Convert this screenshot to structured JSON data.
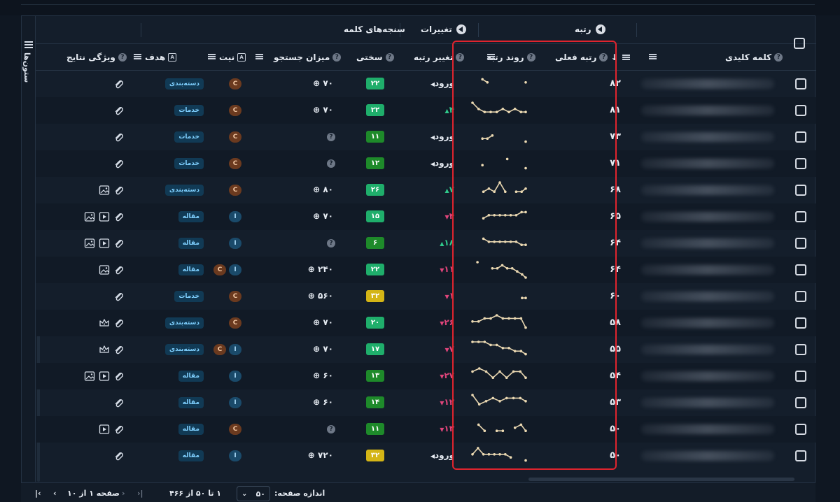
{
  "columns_rail_label": "ستون‌ها",
  "groups": {
    "rank": "رتبه",
    "changes": "تغییرات",
    "metrics": "سنجه‌های کلمه"
  },
  "headers": {
    "keyword": "کلمه کلیدی",
    "current_rank": "رتبه فعلی",
    "rank_trend": "روند رتبه",
    "rank_change": "تغییر رتبه",
    "difficulty": "سختی",
    "search_volume": "میزان جستجو",
    "intent": "نیت",
    "target": "هدف",
    "serp_features": "ویژگی نتایج"
  },
  "rows": [
    {
      "rank": "۸۲",
      "trend": [
        null,
        null,
        2,
        3,
        null,
        null,
        null,
        null,
        null,
        null,
        null,
        3
      ],
      "change": "ورود",
      "dir": "entry",
      "diff": "۲۲",
      "diffColor": "#1fae6b",
      "vol": "۷۰",
      "volQ": false,
      "intent": [
        "C"
      ],
      "target": "دسته‌بندی",
      "feat": [
        "clip"
      ]
    },
    {
      "rank": "۸۱",
      "trend": [
        1,
        3,
        4,
        4,
        4,
        3,
        4,
        3,
        4,
        4
      ],
      "change": "۴",
      "dir": "up",
      "diff": "۲۲",
      "diffColor": "#1fae6b",
      "vol": "۷۰",
      "volQ": false,
      "intent": [
        "C"
      ],
      "target": "خدمات",
      "feat": [
        "clip"
      ]
    },
    {
      "rank": "۷۳",
      "trend": [
        null,
        null,
        4,
        4,
        3,
        null,
        null,
        null,
        null,
        null,
        null,
        5
      ],
      "change": "ورود",
      "dir": "entry",
      "diff": "۱۱",
      "diffColor": "#1e8a2a",
      "vol": "",
      "volQ": true,
      "intent": [
        "C"
      ],
      "target": "خدمات",
      "feat": [
        "clip"
      ]
    },
    {
      "rank": "۷۱",
      "trend": [
        null,
        null,
        4,
        null,
        null,
        null,
        null,
        2,
        null,
        null,
        null,
        5
      ],
      "change": "ورود",
      "dir": "entry",
      "diff": "۱۲",
      "diffColor": "#1e8a2a",
      "vol": "",
      "volQ": true,
      "intent": [
        "C"
      ],
      "target": "خدمات",
      "feat": [
        "clip"
      ]
    },
    {
      "rank": "۶۸",
      "trend": [
        null,
        null,
        4,
        3,
        4,
        1,
        4,
        null,
        4,
        4,
        3
      ],
      "change": "۷",
      "dir": "up",
      "diff": "۲۶",
      "diffColor": "#1fae6b",
      "vol": "۸۰",
      "volQ": false,
      "intent": [
        "C"
      ],
      "target": "دسته‌بندی",
      "feat": [
        "clip",
        "image"
      ]
    },
    {
      "rank": "۶۵",
      "trend": [
        null,
        null,
        4,
        3,
        3,
        3,
        3,
        3,
        3,
        2,
        2
      ],
      "change": "۴",
      "dir": "down",
      "diff": "۱۵",
      "diffColor": "#1fae6b",
      "vol": "۷۰",
      "volQ": false,
      "intent": [
        "I"
      ],
      "target": "مقاله",
      "feat": [
        "clip",
        "video",
        "image"
      ]
    },
    {
      "rank": "۶۴",
      "trend": [
        null,
        null,
        2,
        3,
        3,
        3,
        3,
        3,
        3,
        4,
        4
      ],
      "change": "۱۸",
      "dir": "up",
      "diff": "۶",
      "diffColor": "#1e8a2a",
      "vol": "",
      "volQ": true,
      "intent": [
        "I"
      ],
      "target": "مقاله",
      "feat": [
        "clip",
        "video",
        "image"
      ]
    },
    {
      "rank": "۶۴",
      "trend": [
        null,
        1,
        null,
        null,
        3,
        3,
        2,
        3,
        3,
        4,
        5,
        6
      ],
      "change": "۱۱",
      "dir": "down",
      "diff": "۲۲",
      "diffColor": "#1fae6b",
      "vol": "۲۴۰",
      "volQ": false,
      "intent": [
        "C",
        "I"
      ],
      "target": "مقاله",
      "feat": [
        "clip",
        "image"
      ]
    },
    {
      "rank": "۶۰",
      "trend": [
        null,
        null,
        null,
        null,
        null,
        null,
        null,
        null,
        null,
        null,
        4,
        4
      ],
      "change": "۱",
      "dir": "down",
      "diff": "۳۲",
      "diffColor": "#d4b516",
      "vol": "۵۶۰",
      "volQ": false,
      "intent": [
        "C"
      ],
      "target": "خدمات",
      "feat": [
        "clip"
      ]
    },
    {
      "rank": "۵۸",
      "trend": [
        3,
        3,
        2,
        2,
        1,
        2,
        2,
        2,
        2,
        5
      ],
      "change": "۲۶",
      "dir": "down",
      "diff": "۲۰",
      "diffColor": "#1fae6b",
      "vol": "۷۰",
      "volQ": false,
      "intent": [
        "C"
      ],
      "target": "دسته‌بندی",
      "feat": [
        "clip",
        "crown"
      ]
    },
    {
      "rank": "۵۵",
      "trend": [
        1,
        1,
        1,
        2,
        2,
        3,
        3,
        4,
        4,
        5
      ],
      "change": "۷",
      "dir": "down",
      "diff": "۱۷",
      "diffColor": "#1fae6b",
      "vol": "۷۰",
      "volQ": false,
      "intent": [
        "C",
        "I"
      ],
      "target": "دسته‌بندی",
      "feat": [
        "clip",
        "crown"
      ]
    },
    {
      "rank": "۵۴",
      "trend": [
        2,
        1,
        2,
        4,
        2,
        4,
        2,
        2,
        4
      ],
      "change": "۲۷",
      "dir": "down",
      "diff": "۱۳",
      "diffColor": "#1e8a2a",
      "vol": "۶۰",
      "volQ": false,
      "intent": [
        "I"
      ],
      "target": "مقاله",
      "feat": [
        "clip",
        "video",
        "image"
      ]
    },
    {
      "rank": "۵۳",
      "trend": [
        1,
        4,
        3,
        2,
        3,
        2,
        2,
        2,
        3
      ],
      "change": "۱۲",
      "dir": "down",
      "diff": "۱۴",
      "diffColor": "#1e8a2a",
      "vol": "۶۰",
      "volQ": false,
      "intent": [
        "I"
      ],
      "target": "مقاله",
      "feat": [
        "clip"
      ]
    },
    {
      "rank": "۵۰",
      "trend": [
        null,
        2,
        4,
        null,
        4,
        4,
        null,
        3,
        2,
        4
      ],
      "change": "۱۳",
      "dir": "down",
      "diff": "۱۱",
      "diffColor": "#1e8a2a",
      "vol": "",
      "volQ": true,
      "intent": [
        "C"
      ],
      "target": "مقاله",
      "feat": [
        "clip",
        "video"
      ]
    },
    {
      "rank": "۵۰",
      "trend": [
        3,
        1,
        3,
        3,
        3,
        3,
        3,
        4,
        null,
        null,
        5
      ],
      "change": "ورود",
      "dir": "entry",
      "diff": "۳۲",
      "diffColor": "#d4b516",
      "vol": "۷۲۰",
      "volQ": false,
      "intent": [
        "I"
      ],
      "target": "مقاله",
      "feat": [
        "clip"
      ]
    }
  ],
  "footer": {
    "page_size_label": "اندازه صفحه:",
    "page_size_value": "۵۰",
    "range": "۱ تا ۵۰ از ۴۶۶",
    "page_info": "صفحه ۱ از ۱۰"
  }
}
